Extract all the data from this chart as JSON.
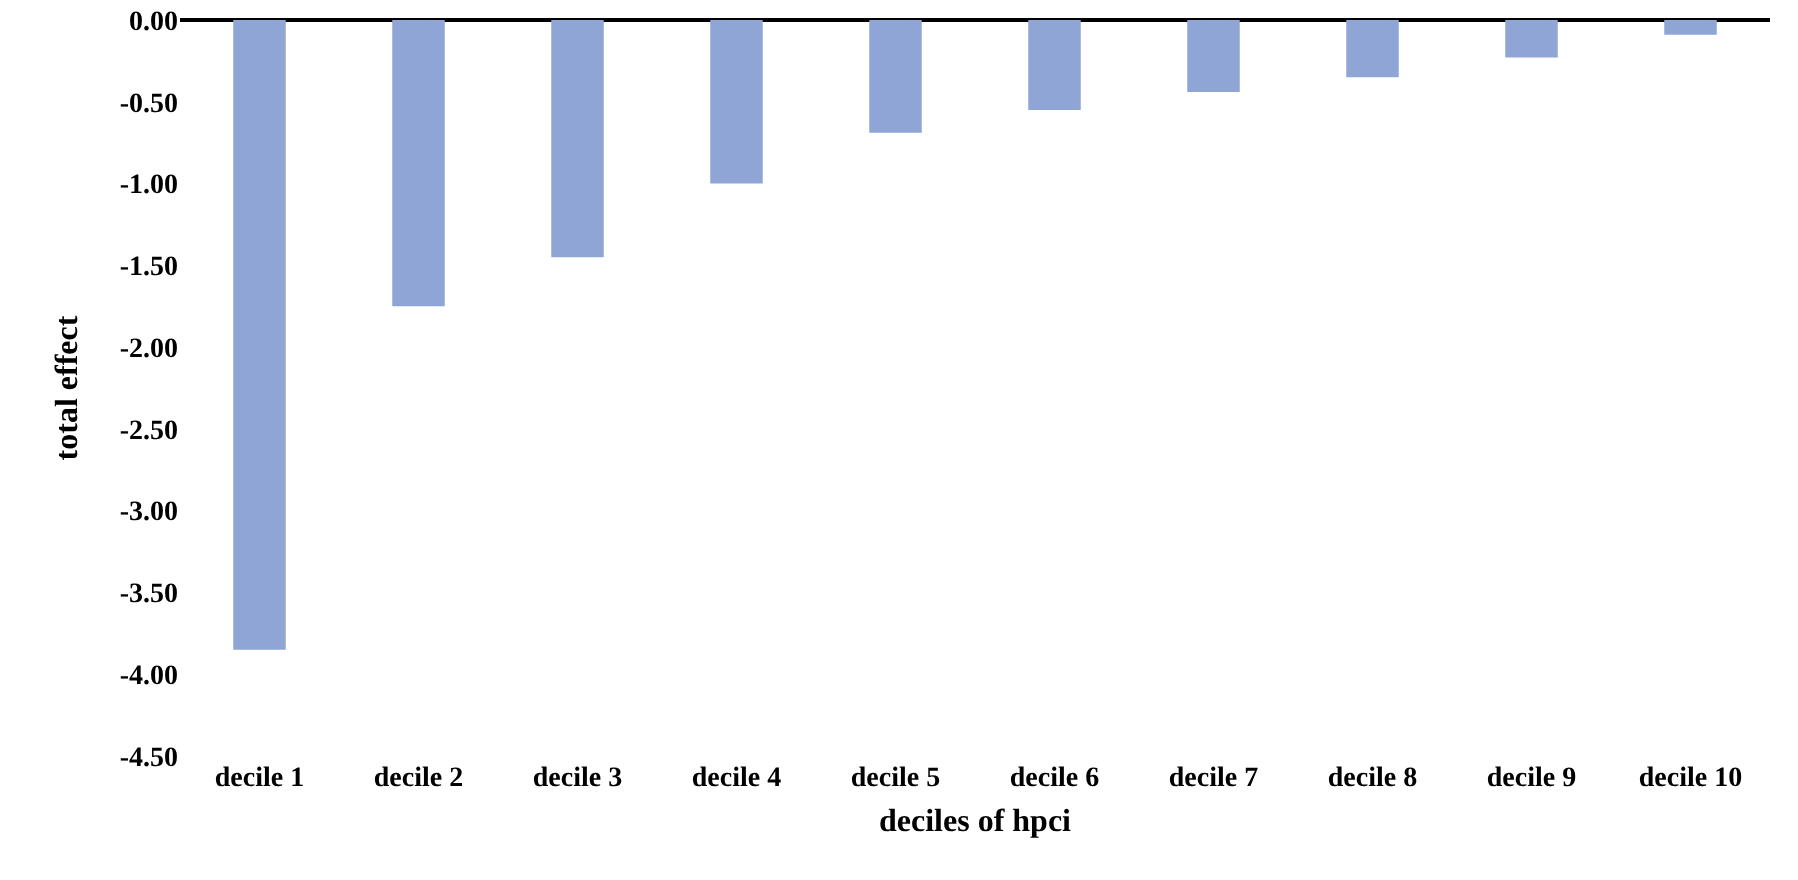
{
  "chart_data": {
    "type": "bar",
    "xlabel": "deciles of hpci",
    "ylabel": "total effect",
    "categories": [
      "decile 1",
      "decile 2",
      "decile 3",
      "decile 4",
      "decile 5",
      "decile 6",
      "decile 7",
      "decile 8",
      "decile 9",
      "decile 10"
    ],
    "values": [
      -3.85,
      -1.75,
      -1.45,
      -1.0,
      -0.69,
      -0.55,
      -0.44,
      -0.35,
      -0.23,
      -0.09
    ],
    "color": "#8fa5d6",
    "ylim": [
      -4.5,
      0
    ],
    "yticks": [
      {
        "value": 0,
        "label": "0.00"
      },
      {
        "value": -0.5,
        "label": "-0.50"
      },
      {
        "value": -1,
        "label": "-1.00"
      },
      {
        "value": -1.5,
        "label": "-1.50"
      },
      {
        "value": -2,
        "label": "-2.00"
      },
      {
        "value": -2.5,
        "label": "-2.50"
      },
      {
        "value": -3,
        "label": "-3.00"
      },
      {
        "value": -3.5,
        "label": "-3.50"
      },
      {
        "value": -4,
        "label": "-4.00"
      },
      {
        "value": -4.5,
        "label": "-4.50"
      }
    ],
    "grid": false,
    "legend": false
  }
}
